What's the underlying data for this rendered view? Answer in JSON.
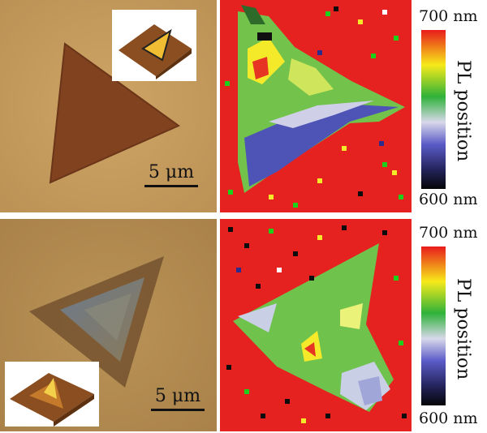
{
  "panels": {
    "top": {
      "scale_label": "5 μm",
      "colorbar": {
        "max_label": "700 nm",
        "min_label": "600 nm",
        "title": "PL position"
      }
    },
    "bottom": {
      "scale_label": "5 μm",
      "colorbar": {
        "max_label": "700 nm",
        "min_label": "600 nm",
        "title": "PL position"
      }
    }
  },
  "colors": {
    "substrate_top": "#c69a5c",
    "substrate_bottom": "#b38c51",
    "crystal_top": "#80421f",
    "map_background": "#e52220",
    "map_crystal": "#61c049"
  }
}
